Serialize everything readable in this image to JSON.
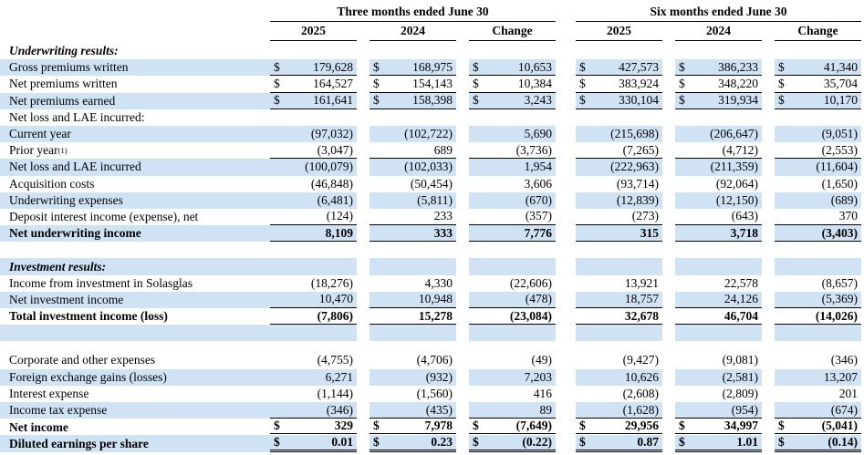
{
  "table": {
    "colors": {
      "stripe": "#cfe3f5",
      "rule": "#000000"
    },
    "groups": [
      {
        "title": "Three months ended June 30"
      },
      {
        "title": "Six months ended June 30"
      }
    ],
    "year_headers": [
      "2025",
      "2024",
      "Change",
      "2025",
      "2024",
      "Change"
    ],
    "rows": [
      {
        "name": "section-underwriting-results",
        "label": "Underwriting results:",
        "italic": true,
        "bold": true,
        "shaded": false,
        "values": [
          "",
          "",
          "",
          "",
          "",
          ""
        ]
      },
      {
        "name": "row-gross-premiums-written",
        "label": "Gross premiums written",
        "shaded": true,
        "dollar": true,
        "rule": "single",
        "values": [
          "179,628",
          "168,975",
          "10,653",
          "427,573",
          "386,233",
          "41,340"
        ]
      },
      {
        "name": "row-net-premiums-written",
        "label": "Net premiums written",
        "shaded": false,
        "dollar": true,
        "rule": "single",
        "values": [
          "164,527",
          "154,143",
          "10,384",
          "383,924",
          "348,220",
          "35,704"
        ]
      },
      {
        "name": "row-net-premiums-earned",
        "label": "Net premiums earned",
        "shaded": true,
        "dollar": true,
        "rule": "single",
        "values": [
          "161,641",
          "158,398",
          "3,243",
          "330,104",
          "319,934",
          "10,170"
        ]
      },
      {
        "name": "section-net-loss-lae-incurred",
        "label": "Net loss and LAE incurred:",
        "shaded": false,
        "values": [
          "",
          "",
          "",
          "",
          "",
          ""
        ]
      },
      {
        "name": "row-current-year",
        "label": "Current year",
        "indent": true,
        "shaded": true,
        "values": [
          "(97,032)",
          "(102,722)",
          "5,690",
          "(215,698)",
          "(206,647)",
          "(9,051)"
        ]
      },
      {
        "name": "row-prior-year",
        "label": "Prior year",
        "sup": "(1)",
        "indent": true,
        "shaded": false,
        "rule": "single",
        "values": [
          "(3,047)",
          "689",
          "(3,736)",
          "(7,265)",
          "(4,712)",
          "(2,553)"
        ]
      },
      {
        "name": "row-net-loss-lae-incurred-total",
        "label": "Net loss and LAE incurred",
        "shaded": true,
        "values": [
          "(100,079)",
          "(102,033)",
          "1,954",
          "(222,963)",
          "(211,359)",
          "(11,604)"
        ]
      },
      {
        "name": "row-acquisition-costs",
        "label": "Acquisition costs",
        "shaded": false,
        "values": [
          "(46,848)",
          "(50,454)",
          "3,606",
          "(93,714)",
          "(92,064)",
          "(1,650)"
        ]
      },
      {
        "name": "row-underwriting-expenses",
        "label": "Underwriting expenses",
        "shaded": true,
        "values": [
          "(6,481)",
          "(5,811)",
          "(670)",
          "(12,839)",
          "(12,150)",
          "(689)"
        ]
      },
      {
        "name": "row-deposit-interest-income",
        "label": "Deposit interest income (expense), net",
        "shaded": false,
        "rule": "single",
        "values": [
          "(124)",
          "233",
          "(357)",
          "(273)",
          "(643)",
          "370"
        ]
      },
      {
        "name": "row-net-underwriting-income",
        "label": "Net underwriting income",
        "bold": true,
        "shaded": true,
        "rule": "single",
        "values": [
          "8,109",
          "333",
          "7,776",
          "315",
          "3,718",
          "(3,403)"
        ]
      },
      {
        "name": "spacer-row",
        "label": "",
        "shaded": false,
        "values": [
          "",
          "",
          "",
          "",
          "",
          ""
        ]
      },
      {
        "name": "section-investment-results",
        "label": "Investment results:",
        "italic": true,
        "bold": true,
        "shaded": true,
        "values": [
          "",
          "",
          "",
          "",
          "",
          ""
        ]
      },
      {
        "name": "row-income-from-solasglas",
        "label": "Income from investment in Solasglas",
        "shaded": false,
        "values": [
          "(18,276)",
          "4,330",
          "(22,606)",
          "13,921",
          "22,578",
          "(8,657)"
        ]
      },
      {
        "name": "row-net-investment-income",
        "label": "Net investment income",
        "shaded": true,
        "rule": "single",
        "values": [
          "10,470",
          "10,948",
          "(478)",
          "18,757",
          "24,126",
          "(5,369)"
        ]
      },
      {
        "name": "row-total-investment-income",
        "label": "Total investment income (loss)",
        "bold": true,
        "shaded": false,
        "rule": "single",
        "values": [
          "(7,806)",
          "15,278",
          "(23,084)",
          "32,678",
          "46,704",
          "(14,026)"
        ]
      },
      {
        "name": "spacer-row",
        "label": "",
        "shaded": true,
        "values": [
          "",
          "",
          "",
          "",
          "",
          ""
        ]
      },
      {
        "name": "spacer-row",
        "label": "",
        "shaded": false,
        "h": 12,
        "values": [
          "",
          "",
          "",
          "",
          "",
          ""
        ]
      },
      {
        "name": "row-corporate-other-expenses",
        "label": "Corporate and other expenses",
        "shaded": false,
        "values": [
          "(4,755)",
          "(4,706)",
          "(49)",
          "(9,427)",
          "(9,081)",
          "(346)"
        ]
      },
      {
        "name": "row-foreign-exchange",
        "label": "Foreign exchange gains (losses)",
        "shaded": true,
        "values": [
          "6,271",
          "(932)",
          "7,203",
          "10,626",
          "(2,581)",
          "13,207"
        ]
      },
      {
        "name": "row-interest-expense",
        "label": "Interest expense",
        "shaded": false,
        "values": [
          "(1,144)",
          "(1,560)",
          "416",
          "(2,608)",
          "(2,809)",
          "201"
        ]
      },
      {
        "name": "row-income-tax-expense",
        "label": "Income tax expense",
        "shaded": true,
        "rule": "single",
        "values": [
          "(346)",
          "(435)",
          "89",
          "(1,628)",
          "(954)",
          "(674)"
        ]
      },
      {
        "name": "row-net-income",
        "label": "Net income",
        "bold": true,
        "shaded": false,
        "dollar": true,
        "rule": "double",
        "values": [
          "329",
          "7,978",
          "(7,649)",
          "29,956",
          "34,997",
          "(5,041)"
        ]
      },
      {
        "name": "row-diluted-eps",
        "label": "Diluted earnings per share",
        "bold": true,
        "shaded": true,
        "dollar": true,
        "rule": "double",
        "values": [
          "0.01",
          "0.23",
          "(0.22)",
          "0.87",
          "1.01",
          "(0.14)"
        ]
      }
    ]
  }
}
